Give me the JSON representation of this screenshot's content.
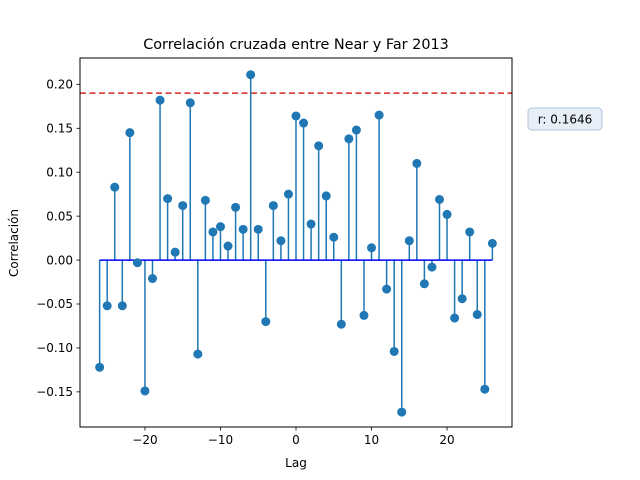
{
  "chart_data": {
    "type": "stem",
    "title": "Correlación cruzada entre Near y Far 2013",
    "xlabel": "Lag",
    "ylabel": "Correlación",
    "xlim": [
      -28.6,
      28.6
    ],
    "ylim": [
      -0.19,
      0.23
    ],
    "x_ticks": [
      -20,
      -10,
      0,
      10,
      20
    ],
    "x_tick_labels": [
      "−20",
      "−10",
      "0",
      "10",
      "20"
    ],
    "y_ticks": [
      -0.15,
      -0.1,
      -0.05,
      0.0,
      0.05,
      0.1,
      0.15,
      0.2
    ],
    "y_tick_labels": [
      "−0.15",
      "−0.10",
      "−0.05",
      "0.00",
      "0.05",
      "0.10",
      "0.15",
      "0.20"
    ],
    "baseline": 0,
    "threshold": 0.19,
    "lags": [
      -26,
      -25,
      -24,
      -23,
      -22,
      -21,
      -20,
      -19,
      -18,
      -17,
      -16,
      -15,
      -14,
      -13,
      -12,
      -11,
      -10,
      -9,
      -8,
      -7,
      -6,
      -5,
      -4,
      -3,
      -2,
      -1,
      0,
      1,
      2,
      3,
      4,
      5,
      6,
      7,
      8,
      9,
      10,
      11,
      12,
      13,
      14,
      15,
      16,
      17,
      18,
      19,
      20,
      21,
      22,
      23,
      24,
      25,
      26
    ],
    "values": [
      -0.122,
      -0.052,
      0.083,
      -0.052,
      0.145,
      -0.003,
      -0.149,
      -0.021,
      0.182,
      0.07,
      0.009,
      0.062,
      0.179,
      -0.107,
      0.068,
      0.032,
      0.038,
      0.016,
      0.06,
      0.035,
      0.211,
      0.035,
      -0.07,
      0.062,
      0.022,
      0.075,
      0.164,
      0.156,
      0.041,
      0.13,
      0.073,
      0.026,
      -0.073,
      0.138,
      0.148,
      -0.063,
      0.014,
      0.165,
      -0.033,
      -0.104,
      -0.173,
      0.022,
      0.11,
      -0.027,
      -0.008,
      0.069,
      0.052,
      -0.066,
      -0.044,
      0.032,
      -0.062,
      -0.147,
      0.019
    ],
    "grid": false,
    "annotation": "r: 0.1646",
    "colors": {
      "stem": "#1f77b4",
      "baseline": "#0000ff",
      "threshold": "#d62728",
      "annotation_bg": "#e8eef8",
      "annotation_border": "#b0c4de"
    }
  }
}
